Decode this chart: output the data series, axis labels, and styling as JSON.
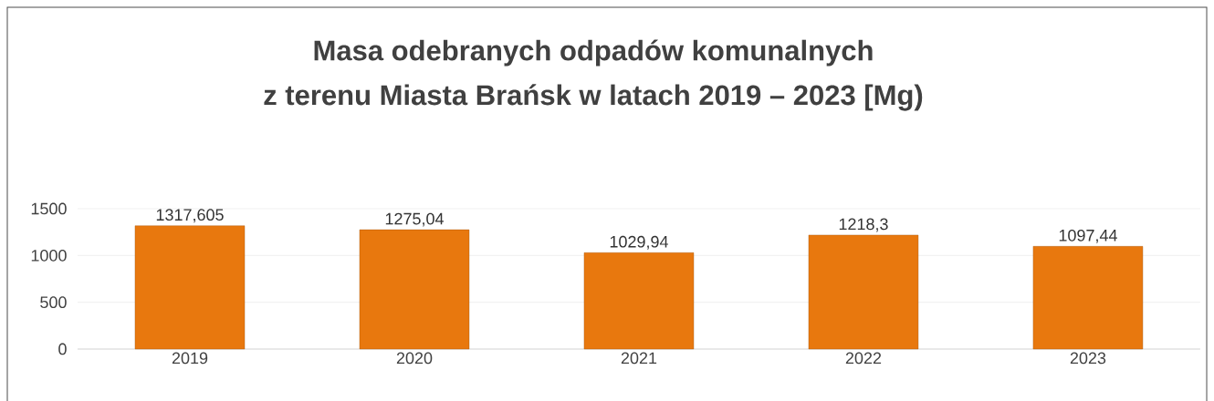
{
  "chart_data": {
    "type": "bar",
    "title": "Masa odebranych odpadów komunalnych",
    "subtitle": "z terenu Miasta Brańsk w latach 2019 – 2023 [Mg)",
    "categories": [
      "2019",
      "2020",
      "2021",
      "2022",
      "2023"
    ],
    "values": [
      1317.605,
      1275.04,
      1029.94,
      1218.3,
      1097.44
    ],
    "value_labels": [
      "1317,605",
      "1275,04",
      "1029,94",
      "1218,3",
      "1097,44"
    ],
    "color": "#e8780e",
    "ylim": [
      0,
      1500
    ],
    "yticks": [
      0,
      500,
      1000,
      1500
    ],
    "grid": "y"
  }
}
